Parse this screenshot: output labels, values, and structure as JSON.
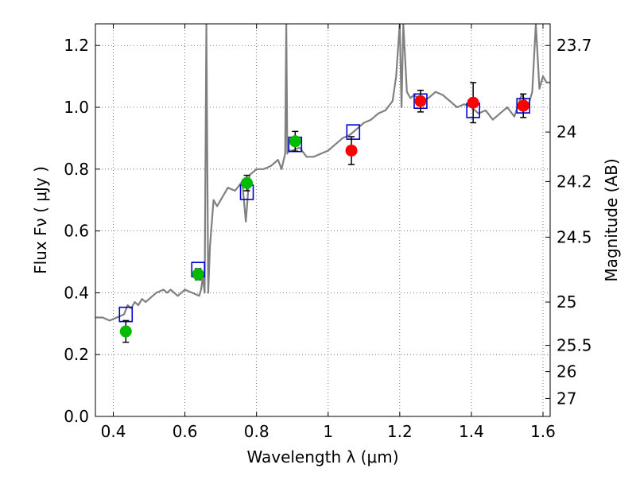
{
  "chart_data": {
    "type": "scatter",
    "title": "",
    "xlabel": "Wavelength  λ (μm)",
    "ylabel": "Flux  Fν  ( μJy )",
    "ylabel_right": "Magnitude (AB)",
    "xlim": [
      0.35,
      1.62
    ],
    "ylim": [
      0.0,
      1.27
    ],
    "grid": true,
    "x_ticks": [
      0.4,
      0.6,
      0.8,
      1.0,
      1.2,
      1.4,
      1.6
    ],
    "x_tick_labels": [
      "0.4",
      "0.6",
      "0.8",
      "1",
      "1.2",
      "1.4",
      "1.6"
    ],
    "y_ticks": [
      0.0,
      0.2,
      0.4,
      0.6,
      0.8,
      1.0,
      1.2
    ],
    "y_tick_labels": [
      "0.0",
      "0.2",
      "0.4",
      "0.6",
      "0.8",
      "1.0",
      "1.2"
    ],
    "right_axis_ticks": [
      {
        "label": "23.7",
        "flux": 1.2
      },
      {
        "label": "24",
        "flux": 0.92
      },
      {
        "label": "24.2",
        "flux": 0.76
      },
      {
        "label": "24.5",
        "flux": 0.58
      },
      {
        "label": "25",
        "flux": 0.37
      },
      {
        "label": "25.5",
        "flux": 0.23
      },
      {
        "label": "26",
        "flux": 0.145
      },
      {
        "label": "27",
        "flux": 0.058
      }
    ],
    "series": [
      {
        "role": "model-spectrum",
        "color": "#808080",
        "x": [
          0.35,
          0.37,
          0.39,
          0.41,
          0.43,
          0.44,
          0.45,
          0.46,
          0.47,
          0.48,
          0.49,
          0.5,
          0.52,
          0.54,
          0.55,
          0.56,
          0.58,
          0.6,
          0.62,
          0.64,
          0.645,
          0.65,
          0.655,
          0.66,
          0.665,
          0.67,
          0.68,
          0.69,
          0.7,
          0.72,
          0.74,
          0.76,
          0.77,
          0.78,
          0.79,
          0.8,
          0.82,
          0.84,
          0.85,
          0.86,
          0.87,
          0.88,
          0.883,
          0.886,
          0.89,
          0.9,
          0.92,
          0.94,
          0.96,
          0.98,
          1.0,
          1.02,
          1.04,
          1.06,
          1.08,
          1.1,
          1.12,
          1.14,
          1.16,
          1.18,
          1.19,
          1.2,
          1.205,
          1.21,
          1.22,
          1.23,
          1.24,
          1.26,
          1.28,
          1.3,
          1.32,
          1.34,
          1.36,
          1.38,
          1.4,
          1.42,
          1.44,
          1.46,
          1.48,
          1.5,
          1.52,
          1.54,
          1.56,
          1.57,
          1.58,
          1.59,
          1.6,
          1.61,
          1.62
        ],
        "y": [
          0.32,
          0.32,
          0.31,
          0.32,
          0.33,
          0.36,
          0.35,
          0.37,
          0.36,
          0.38,
          0.37,
          0.38,
          0.4,
          0.41,
          0.4,
          0.41,
          0.39,
          0.41,
          0.4,
          0.39,
          0.41,
          0.45,
          0.4,
          1.27,
          0.4,
          0.55,
          0.7,
          0.68,
          0.7,
          0.74,
          0.73,
          0.76,
          0.63,
          0.78,
          0.79,
          0.8,
          0.8,
          0.81,
          0.82,
          0.83,
          0.8,
          0.85,
          1.27,
          0.85,
          0.86,
          0.86,
          0.87,
          0.84,
          0.84,
          0.85,
          0.86,
          0.88,
          0.9,
          0.91,
          0.93,
          0.95,
          0.96,
          0.98,
          0.99,
          1.02,
          1.1,
          1.27,
          1.0,
          1.27,
          1.05,
          1.03,
          1.04,
          1.02,
          1.03,
          1.05,
          1.04,
          1.02,
          1.0,
          1.01,
          1.0,
          0.98,
          0.99,
          0.96,
          0.98,
          1.0,
          0.97,
          1.04,
          1.01,
          1.05,
          1.27,
          1.06,
          1.1,
          1.08,
          1.08
        ]
      },
      {
        "role": "model-photometry",
        "color": "#0000cc",
        "x": [
          0.435,
          0.637,
          0.773,
          0.908,
          1.07,
          1.258,
          1.405,
          1.545
        ],
        "y": [
          0.33,
          0.475,
          0.725,
          0.88,
          0.92,
          1.02,
          0.99,
          1.005
        ]
      },
      {
        "role": "observed-optical",
        "color": "#00bb00",
        "x": [
          0.435,
          0.637,
          0.773,
          0.908
        ],
        "y": [
          0.275,
          0.46,
          0.755,
          0.89
        ],
        "yerr": [
          0.035,
          0.018,
          0.025,
          0.032
        ]
      },
      {
        "role": "observed-nir",
        "color": "#ff0000",
        "x": [
          1.065,
          1.258,
          1.405,
          1.545
        ],
        "y": [
          0.86,
          1.02,
          1.015,
          1.005
        ],
        "yerr": [
          0.045,
          0.035,
          0.065,
          0.038
        ]
      }
    ]
  }
}
